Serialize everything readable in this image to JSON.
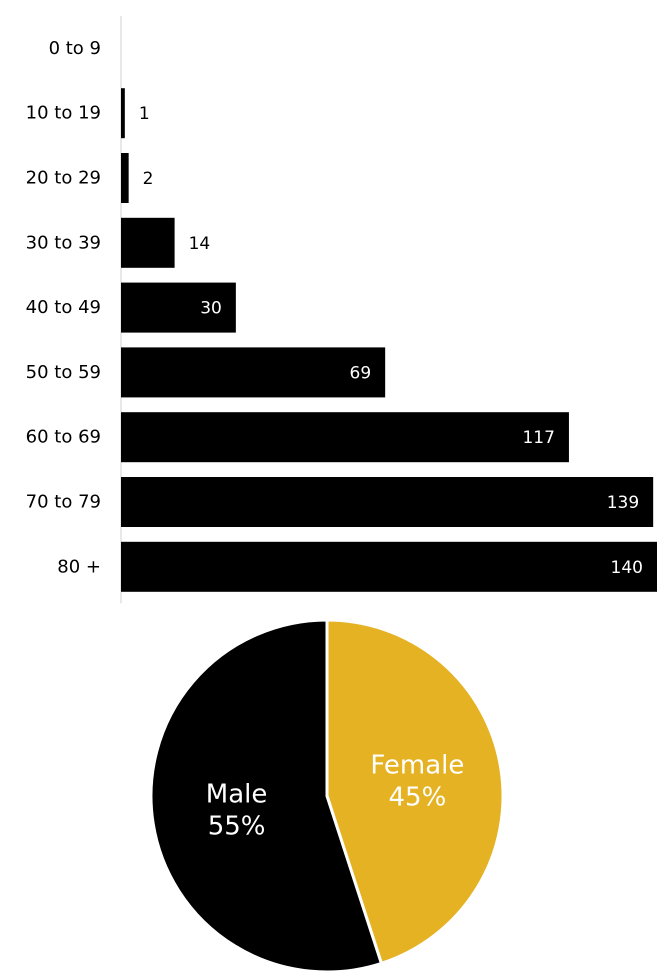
{
  "colors": {
    "bar": "#000000",
    "axis": "#d0d0d0",
    "male": "#000000",
    "female": "#e5b224",
    "label_dark": "#000000",
    "label_light": "#ffffff"
  },
  "chart_data": [
    {
      "type": "bar",
      "orientation": "horizontal",
      "categories": [
        "0 to 9",
        "10 to 19",
        "20 to 29",
        "30 to 39",
        "40 to 49",
        "50 to 59",
        "60 to 69",
        "70 to 79",
        "80 +"
      ],
      "values": [
        0,
        1,
        2,
        14,
        30,
        69,
        117,
        139,
        140
      ],
      "value_labels": [
        "",
        "1",
        "2",
        "14",
        "30",
        "69",
        "117",
        "139",
        "140"
      ],
      "xlim": [
        0,
        140
      ],
      "grid": false
    },
    {
      "type": "pie",
      "slices": [
        {
          "name": "Male",
          "value": 55,
          "label": "55%",
          "color": "#000000"
        },
        {
          "name": "Female",
          "value": 45,
          "label": "45%",
          "color": "#e5b224"
        }
      ]
    }
  ]
}
